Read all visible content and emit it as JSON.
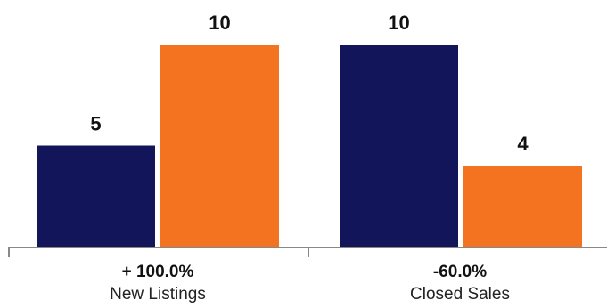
{
  "chart_data": {
    "type": "bar",
    "categories": [
      "New Listings",
      "Closed Sales"
    ],
    "change_labels": [
      "+ 100.0%",
      "-60.0%"
    ],
    "series": [
      {
        "values": [
          5,
          10
        ]
      },
      {
        "values": [
          10,
          4
        ]
      }
    ],
    "ylim": [
      0,
      11.5
    ],
    "grid": false,
    "legend": "none"
  },
  "colors": {
    "series_1": "#13155a",
    "series_2": "#f37321",
    "axis": "#888888"
  }
}
